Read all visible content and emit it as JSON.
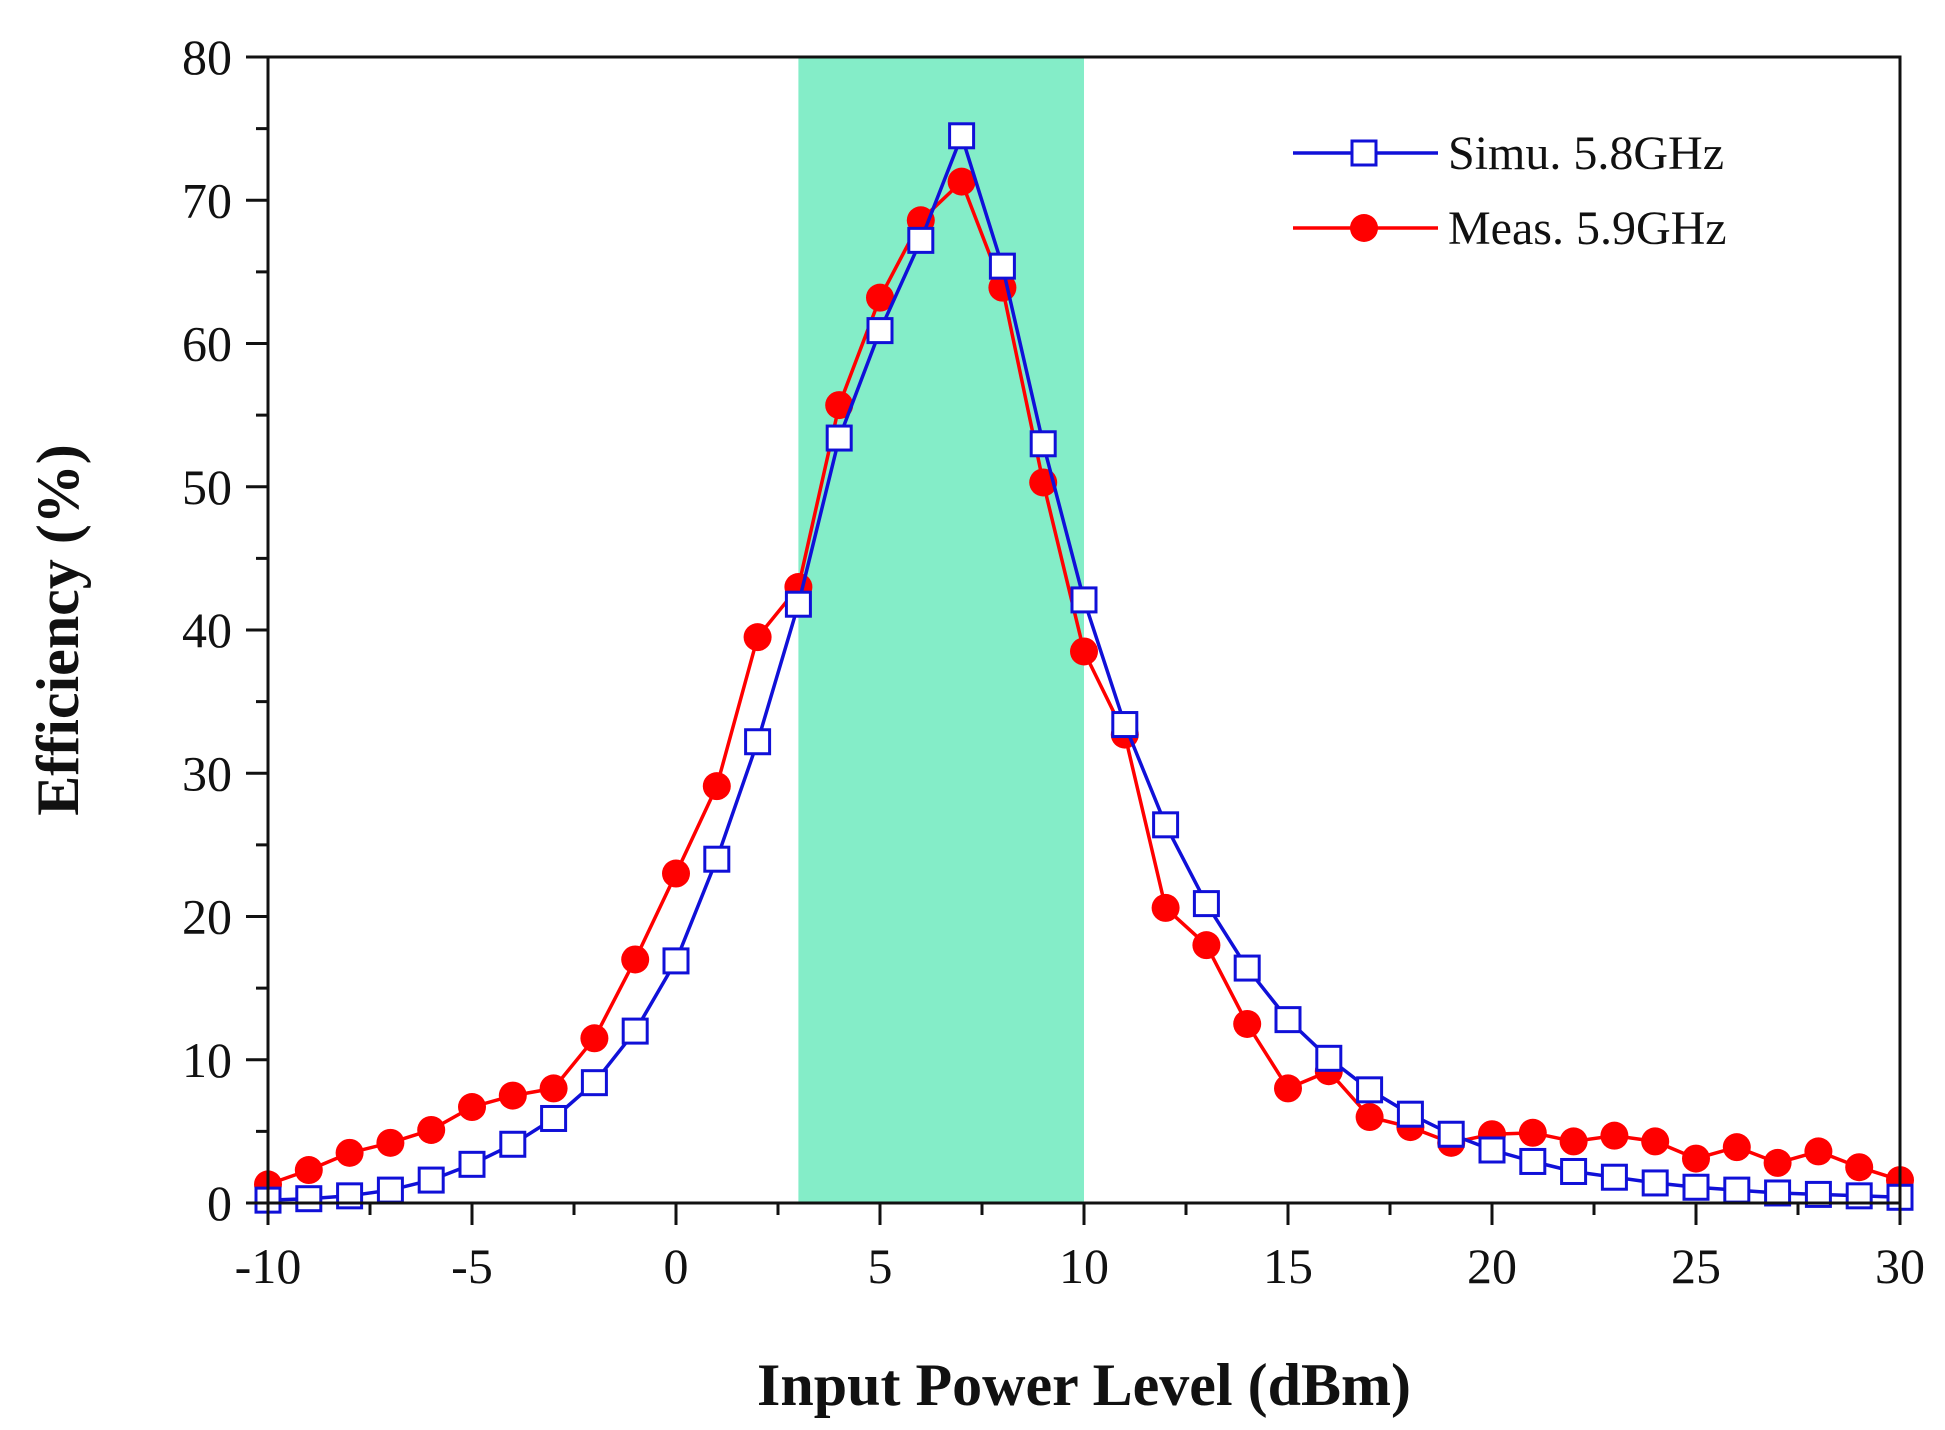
{
  "chart_data": {
    "type": "line",
    "title": "",
    "xlabel": "Input Power Level (dBm)",
    "ylabel": "Efficiency (%)",
    "xlim": [
      -10,
      30
    ],
    "ylim": [
      0,
      80
    ],
    "xticks": [
      -10,
      -5,
      0,
      5,
      10,
      15,
      20,
      25,
      30
    ],
    "yticks": [
      0,
      10,
      20,
      30,
      40,
      50,
      60,
      70,
      80
    ],
    "xtick_labels": [
      "-10",
      "-5",
      "0",
      "5",
      "10",
      "15",
      "20",
      "25",
      "30"
    ],
    "ytick_labels": [
      "0",
      "10",
      "20",
      "30",
      "40",
      "50",
      "60",
      "70",
      "80"
    ],
    "highlight_band": {
      "x_start": 3,
      "x_end": 10,
      "color": "#84EDC8"
    },
    "legend_position": "top-right",
    "x": [
      -10,
      -9,
      -8,
      -7,
      -6,
      -5,
      -4,
      -3,
      -2,
      -1,
      0,
      1,
      2,
      3,
      4,
      5,
      6,
      7,
      8,
      9,
      10,
      11,
      12,
      13,
      14,
      15,
      16,
      17,
      18,
      19,
      20,
      21,
      22,
      23,
      24,
      25,
      26,
      27,
      28,
      29,
      30
    ],
    "series": [
      {
        "name": "Simu. 5.8GHz",
        "color": "#1010D8",
        "marker": "open-square",
        "values": [
          0.2,
          0.3,
          0.5,
          0.9,
          1.6,
          2.7,
          4.1,
          5.9,
          8.4,
          12.0,
          16.9,
          24.0,
          32.2,
          41.8,
          53.4,
          60.9,
          67.2,
          74.5,
          65.4,
          53.0,
          42.1,
          33.4,
          26.4,
          20.9,
          16.4,
          12.8,
          10.1,
          7.9,
          6.2,
          4.8,
          3.7,
          2.9,
          2.2,
          1.8,
          1.4,
          1.1,
          0.9,
          0.7,
          0.6,
          0.5,
          0.4
        ]
      },
      {
        "name": "Meas. 5.9GHz",
        "color": "#FF0000",
        "marker": "filled-circle",
        "values": [
          1.3,
          2.3,
          3.5,
          4.2,
          5.1,
          6.7,
          7.5,
          8.0,
          11.5,
          17.0,
          23.0,
          29.1,
          39.5,
          43.0,
          55.7,
          63.2,
          68.6,
          71.3,
          63.9,
          50.3,
          38.5,
          32.7,
          20.6,
          18.0,
          12.5,
          8.0,
          9.2,
          6.0,
          5.3,
          4.2,
          4.8,
          4.9,
          4.3,
          4.7,
          4.3,
          3.1,
          3.9,
          2.8,
          3.6,
          2.5,
          1.6
        ]
      }
    ]
  }
}
